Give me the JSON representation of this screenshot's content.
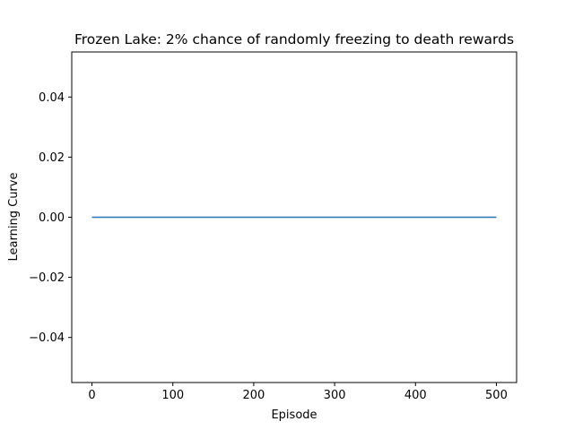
{
  "chart_data": {
    "type": "line",
    "title": "Frozen Lake: 2% chance of randomly freezing to death rewards",
    "xlabel": "Episode",
    "ylabel": "Learning Curve",
    "xlim": [
      -25,
      525
    ],
    "ylim": [
      -0.055,
      0.055
    ],
    "x_ticks": [
      0,
      100,
      200,
      300,
      400,
      500
    ],
    "x_tick_labels": [
      "0",
      "100",
      "200",
      "300",
      "400",
      "500"
    ],
    "y_ticks": [
      -0.04,
      -0.02,
      0.0,
      0.02,
      0.04
    ],
    "y_tick_labels": [
      "−0.04",
      "−0.02",
      "0.00",
      "0.02",
      "0.04"
    ],
    "grid": false,
    "series": [
      {
        "color": "#1f77b4",
        "x": [
          0,
          500
        ],
        "y": [
          0,
          0
        ]
      }
    ]
  }
}
